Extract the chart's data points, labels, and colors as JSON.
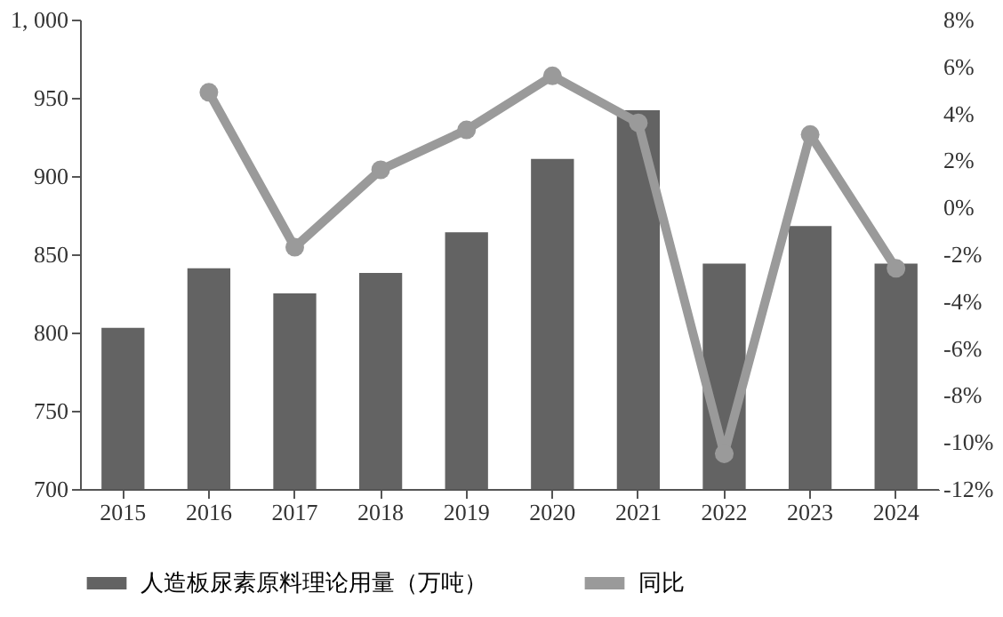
{
  "chart_data": {
    "type": "bar",
    "categories": [
      "2015",
      "2016",
      "2017",
      "2018",
      "2019",
      "2020",
      "2021",
      "2022",
      "2023",
      "2024"
    ],
    "series": [
      {
        "name": "人造板尿素原料理论用量（万吨）",
        "color": "#636363",
        "values": [
          803,
          841,
          825,
          838,
          864,
          911,
          942,
          844,
          868,
          844
        ]
      },
      {
        "name": "同比",
        "type": "line",
        "axis": "y2",
        "color": "#9a9a9a",
        "marker": "circle",
        "values": [
          null,
          4.9,
          -1.7,
          1.6,
          3.3,
          5.6,
          3.6,
          -10.5,
          3.1,
          -2.6
        ]
      }
    ],
    "ylim": [
      700,
      1000
    ],
    "yticks": [
      700,
      750,
      800,
      850,
      900,
      950,
      {
        "value": 1000,
        "label": "1, 000"
      }
    ],
    "y2lim": [
      -12,
      8
    ],
    "y2ticks": [
      {
        "value": -12,
        "label": "-12%"
      },
      {
        "value": -10,
        "label": "-10%"
      },
      {
        "value": -8,
        "label": "-8%"
      },
      {
        "value": -6,
        "label": "-6%"
      },
      {
        "value": -4,
        "label": "-4%"
      },
      {
        "value": -2,
        "label": "-2%"
      },
      {
        "value": 0,
        "label": "0%"
      },
      {
        "value": 2,
        "label": "2%"
      },
      {
        "value": 4,
        "label": "4%"
      },
      {
        "value": 6,
        "label": "6%"
      },
      {
        "value": 8,
        "label": "8%"
      }
    ],
    "grid": false,
    "legend": "bottom"
  }
}
